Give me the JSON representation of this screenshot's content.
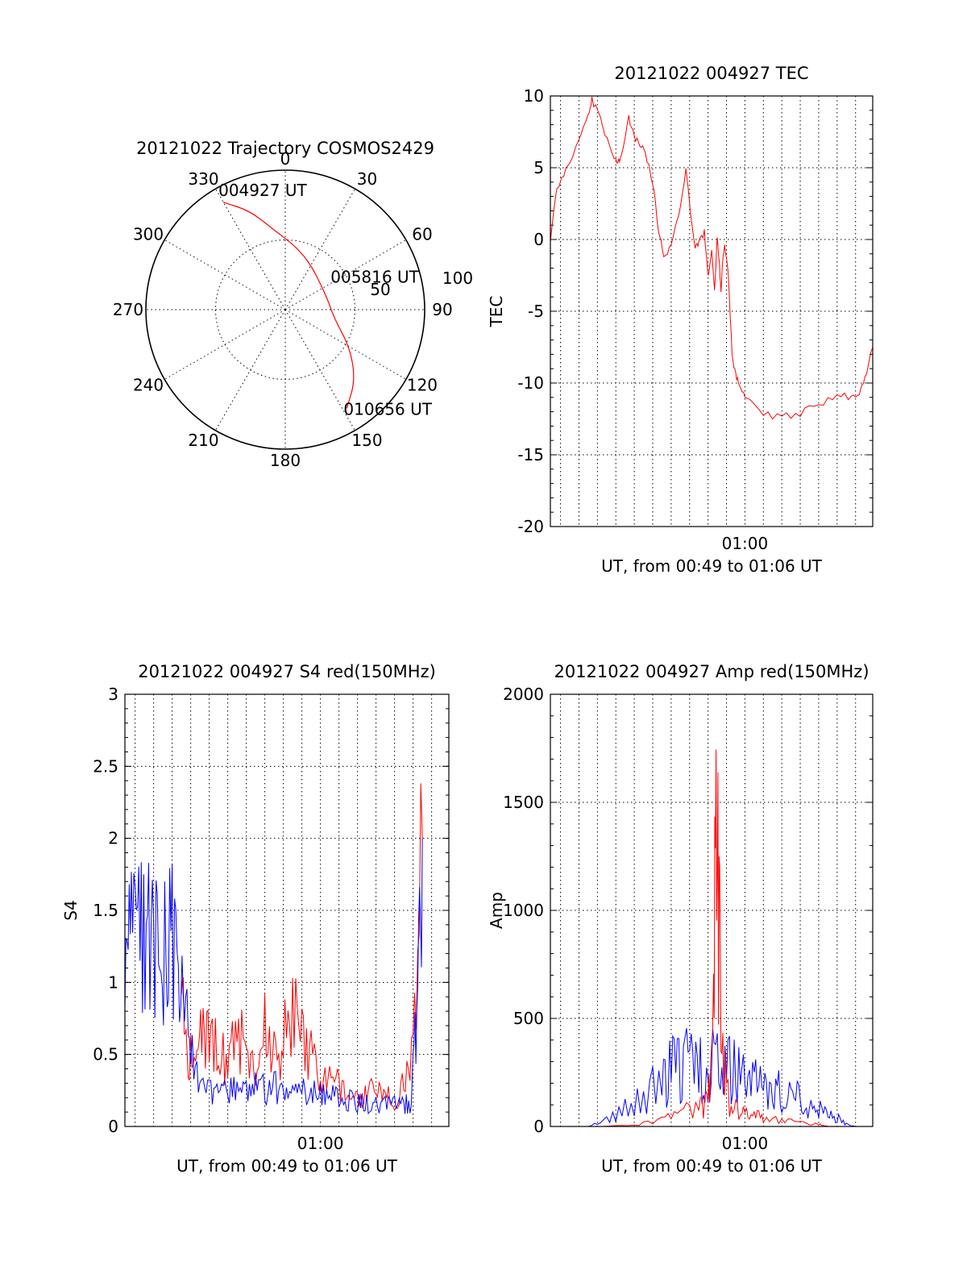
{
  "chart_data": [
    {
      "type": "polar",
      "title": "20121022 Trajectory COSMOS2429",
      "azimuth_ticks": [
        "0",
        "30",
        "60",
        "90",
        "120",
        "150",
        "180",
        "210",
        "240",
        "270",
        "300",
        "330"
      ],
      "radial_labels": [
        "50",
        "100"
      ],
      "elevation_range": [
        0,
        90
      ],
      "grid": true,
      "series": [
        {
          "color": "#ff0000",
          "points": [
            {
              "az": 330,
              "el": 10
            },
            {
              "az": 340,
              "el": 22
            },
            {
              "az": 350,
              "el": 36
            },
            {
              "az": 20,
              "el": 52
            },
            {
              "az": 70,
              "el": 62
            },
            {
              "az": 100,
              "el": 58
            },
            {
              "az": 120,
              "el": 42
            },
            {
              "az": 135,
              "el": 26
            },
            {
              "az": 148,
              "el": 15
            }
          ]
        }
      ],
      "annotations": [
        {
          "text": "004927 UT",
          "az": 330,
          "el": 10
        },
        {
          "text": "005816 UT",
          "az": 80,
          "el": 55
        },
        {
          "text": "010656 UT",
          "az": 148,
          "el": 15
        }
      ]
    },
    {
      "type": "line",
      "title": "20121022 004927 TEC",
      "xlabel": "UT, from 00:49 to 01:06 UT",
      "ylabel": "TEC",
      "xlim": [
        49.45,
        66.93
      ],
      "ylim": [
        -20,
        10
      ],
      "yticks": [
        "10",
        "5",
        "0",
        "-5",
        "-10",
        "-15",
        "-20"
      ],
      "xtick_labels": [
        {
          "x": 60,
          "label": "01:00"
        }
      ],
      "grid": true,
      "series": [
        {
          "color": "#ff0000",
          "x": [
            49.45,
            49.8,
            50.3,
            51.0,
            51.5,
            51.7,
            52.1,
            52.4,
            52.9,
            53.1,
            53.3,
            53.7,
            54.0,
            54.3,
            54.6,
            55.0,
            55.3,
            55.6,
            56.0,
            56.4,
            56.8,
            57.3,
            57.5,
            57.8,
            58.0,
            58.2,
            58.35,
            58.5,
            58.6,
            58.7,
            58.8,
            58.9,
            59.1,
            59.3,
            59.5,
            59.7,
            60.0,
            61.0,
            62.0,
            63.0,
            64.0,
            65.0,
            65.8,
            66.2,
            66.5,
            66.93
          ],
          "y": [
            0,
            3.5,
            4.8,
            6.9,
            8.6,
            9.7,
            8.6,
            7.3,
            5.8,
            5.3,
            5.8,
            8.5,
            7.2,
            6.6,
            6.1,
            4.0,
            0.8,
            -1.2,
            -0.6,
            1.8,
            4.7,
            -0.6,
            -0.2,
            0.5,
            -2.7,
            -0.5,
            -3.7,
            0.3,
            -1.5,
            -3.6,
            -1.2,
            -0.5,
            -2.5,
            -8.0,
            -9.5,
            -10.2,
            -11.0,
            -12.2,
            -12.4,
            -12.1,
            -11.4,
            -11.0,
            -10.9,
            -10.7,
            -9.8,
            -7.5
          ]
        }
      ]
    },
    {
      "type": "line",
      "title": "20121022 004927 S4 red(150MHz)",
      "xlabel": "UT, from 00:49 to 01:06 UT",
      "ylabel": "S4",
      "xlim": [
        49.45,
        66.93
      ],
      "ylim": [
        0,
        3
      ],
      "yticks": [
        "3",
        "2.5",
        "2",
        "1.5",
        "1",
        "0.5",
        "0"
      ],
      "xtick_labels": [
        {
          "x": 60,
          "label": "01:00"
        }
      ],
      "grid": true,
      "series": [
        {
          "color": "#ff0000",
          "x": [
            52.5,
            52.8,
            53.2,
            53.6,
            54.0,
            54.5,
            55.0,
            55.5,
            56.0,
            56.5,
            57.0,
            57.5,
            58.0,
            58.5,
            59.0,
            59.5,
            60.0,
            60.5,
            61.0,
            61.5,
            62.0,
            62.5,
            63.0,
            63.5,
            64.0,
            64.5,
            65.0,
            65.5
          ],
          "y": [
            0.9,
            0.6,
            0.5,
            0.6,
            0.7,
            0.55,
            0.5,
            0.6,
            0.55,
            0.5,
            0.65,
            0.5,
            0.6,
            0.9,
            0.75,
            0.5,
            0.3,
            0.3,
            0.28,
            0.25,
            0.2,
            0.25,
            0.22,
            0.2,
            0.18,
            0.3,
            0.5,
            2.0
          ]
        },
        {
          "color": "#0000ff",
          "x": [
            49.45,
            49.8,
            50.2,
            50.6,
            51.0,
            51.4,
            51.8,
            52.2,
            52.6,
            53.0,
            53.5,
            54.0,
            54.5,
            55.0,
            55.5,
            56.0,
            56.5,
            57.0,
            57.5,
            58.0,
            58.5,
            59.0,
            59.5,
            60.0,
            60.5,
            61.0,
            61.5,
            62.0,
            62.5,
            63.0,
            63.5,
            64.0,
            64.5,
            64.9,
            65.2,
            65.5
          ],
          "y": [
            1.2,
            1.35,
            1.3,
            1.25,
            1.3,
            1.2,
            1.35,
            1.2,
            1.0,
            0.5,
            0.25,
            0.28,
            0.25,
            0.22,
            0.27,
            0.24,
            0.26,
            0.25,
            0.27,
            0.25,
            0.27,
            0.25,
            0.24,
            0.22,
            0.23,
            0.2,
            0.18,
            0.17,
            0.16,
            0.15,
            0.15,
            0.16,
            0.15,
            0.17,
            0.8,
            2.0
          ]
        }
      ]
    },
    {
      "type": "line",
      "title": "20121022 004927 Amp red(150MHz)",
      "xlabel": "UT, from 00:49 to 01:06 UT",
      "ylabel": "Amp",
      "xlim": [
        49.45,
        66.93
      ],
      "ylim": [
        0,
        2000
      ],
      "yticks": [
        "2000",
        "1500",
        "1000",
        "500",
        "0"
      ],
      "xtick_labels": [
        {
          "x": 60,
          "label": "01:00"
        }
      ],
      "grid": true,
      "series": [
        {
          "color": "#0000ff",
          "x": [
            49.45,
            51.5,
            52.5,
            53.5,
            54.5,
            55.5,
            56.0,
            56.5,
            57.0,
            57.5,
            58.0,
            58.5,
            59.0,
            59.5,
            60.0,
            60.5,
            61.0,
            61.5,
            62.0,
            62.5,
            63.0,
            63.5,
            64.0,
            64.5,
            65.0,
            65.5,
            66.0,
            66.93
          ],
          "y": [
            0,
            0,
            30,
            80,
            140,
            220,
            260,
            280,
            300,
            260,
            250,
            300,
            260,
            250,
            220,
            200,
            180,
            170,
            160,
            140,
            120,
            90,
            80,
            100,
            40,
            10,
            0,
            0
          ]
        },
        {
          "color": "#ff0000",
          "x": [
            49.45,
            52.0,
            54.0,
            55.5,
            56.5,
            57.5,
            58.0,
            58.3,
            58.5,
            58.7,
            59.0,
            59.5,
            60.0,
            60.5,
            61.0,
            62.0,
            63.0,
            64.0,
            64.5,
            66.93
          ],
          "y": [
            0,
            0,
            5,
            30,
            60,
            90,
            120,
            600,
            1450,
            700,
            150,
            80,
            60,
            50,
            40,
            30,
            20,
            10,
            0,
            0
          ]
        }
      ]
    }
  ]
}
